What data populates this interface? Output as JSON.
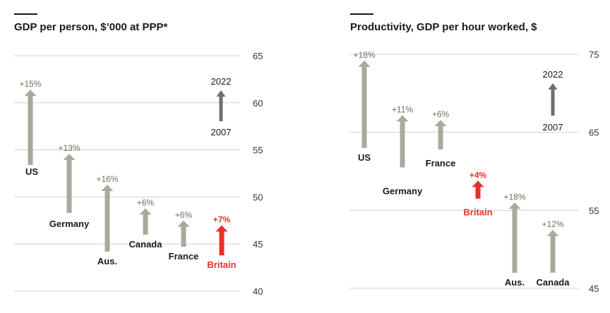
{
  "chart_data": [
    {
      "type": "bar",
      "title": "GDP per person, $’000 at PPP*",
      "ylim": [
        40,
        65
      ],
      "yticks": [
        "40",
        "45",
        "50",
        "55",
        "60",
        "65"
      ],
      "grid": true,
      "series": [
        {
          "country": "US",
          "from": 53.4,
          "to": 61.4,
          "change": "+15%",
          "highlight": false
        },
        {
          "country": "Germany",
          "from": 48.3,
          "to": 54.6,
          "change": "+13%",
          "highlight": false
        },
        {
          "country": "Aus.",
          "from": 44.2,
          "to": 51.3,
          "change": "+16%",
          "highlight": false
        },
        {
          "country": "Canada",
          "from": 46.0,
          "to": 48.8,
          "change": "+6%",
          "highlight": false
        },
        {
          "country": "France",
          "from": 44.7,
          "to": 47.5,
          "change": "+6%",
          "highlight": false
        },
        {
          "country": "Britain",
          "from": 43.8,
          "to": 47.0,
          "change": "+7%",
          "highlight": true
        }
      ],
      "legend": {
        "start_label": "2007",
        "end_label": "2022"
      }
    },
    {
      "type": "bar",
      "title": "Productivity, GDP per hour worked, $",
      "ylim": [
        45,
        75
      ],
      "yticks": [
        "45",
        "55",
        "65",
        "75"
      ],
      "grid": true,
      "series": [
        {
          "country": "US",
          "from": 63.0,
          "to": 74.2,
          "change": "+18%",
          "highlight": false
        },
        {
          "country": "Germany",
          "from": 60.5,
          "to": 67.2,
          "change": "+11%",
          "highlight": false
        },
        {
          "country": "France",
          "from": 62.8,
          "to": 66.6,
          "change": "+6%",
          "highlight": false
        },
        {
          "country": "Britain",
          "from": 56.5,
          "to": 58.8,
          "change": "+4%",
          "highlight": true
        },
        {
          "country": "Aus.",
          "from": 47.0,
          "to": 56.0,
          "change": "+18%",
          "highlight": false
        },
        {
          "country": "Canada",
          "from": 47.0,
          "to": 52.5,
          "change": "+12%",
          "highlight": false
        }
      ],
      "legend": {
        "start_label": "2007",
        "end_label": "2022"
      }
    }
  ],
  "colors": {
    "arrow": "#a9a99c",
    "highlight": "#e8302a",
    "legend_arrow": "#6f6f6f",
    "change_text": "#6f6f5f",
    "grid": "#d0d0d0",
    "text": "#1a1a1a"
  }
}
